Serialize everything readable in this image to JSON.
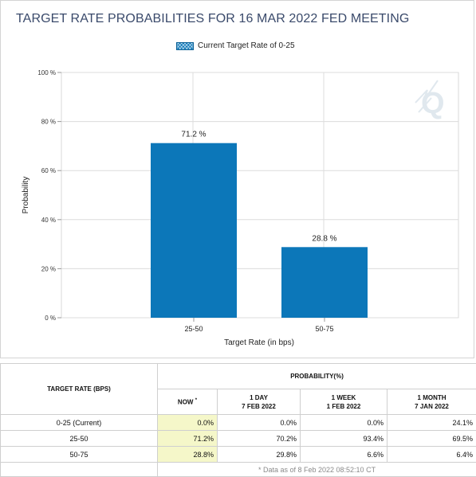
{
  "title": "TARGET RATE PROBABILITIES FOR 16 MAR 2022 FED MEETING",
  "legend": {
    "label": "Current Target Rate of 0-25",
    "color": "#0c77b9"
  },
  "chart_data": {
    "type": "bar",
    "title": "TARGET RATE PROBABILITIES FOR 16 MAR 2022 FED MEETING",
    "categories": [
      "25-50",
      "50-75"
    ],
    "values": [
      71.2,
      28.8
    ],
    "value_labels": [
      "71.2 %",
      "28.8 %"
    ],
    "xlabel": "Target Rate (in bps)",
    "ylabel": "Probability",
    "ylim": [
      0,
      100
    ],
    "yticks": [
      0,
      20,
      40,
      60,
      80,
      100
    ],
    "ytick_labels": [
      "0 %",
      "20 %",
      "40 %",
      "60 %",
      "80 %",
      "100 %"
    ],
    "grid": true,
    "legend_position": "top-center",
    "bar_color": "#0c77b9"
  },
  "table": {
    "col_rate_header": "TARGET RATE (BPS)",
    "prob_header": "PROBABILITY(%)",
    "now_header": "NOW",
    "now_marker": "*",
    "col_headers": [
      {
        "line1": "1 DAY",
        "line2": "7 FEB 2022"
      },
      {
        "line1": "1 WEEK",
        "line2": "1 FEB 2022"
      },
      {
        "line1": "1 MONTH",
        "line2": "7 JAN 2022"
      }
    ],
    "rows": [
      {
        "rate": "0-25 (Current)",
        "now": "0.0%",
        "day": "0.0%",
        "week": "0.0%",
        "month": "24.1%"
      },
      {
        "rate": "25-50",
        "now": "71.2%",
        "day": "70.2%",
        "week": "93.4%",
        "month": "69.5%"
      },
      {
        "rate": "50-75",
        "now": "28.8%",
        "day": "29.8%",
        "week": "6.6%",
        "month": "6.4%"
      }
    ],
    "footnote": "* Data as of 8 Feb 2022 08:52:10 CT"
  }
}
